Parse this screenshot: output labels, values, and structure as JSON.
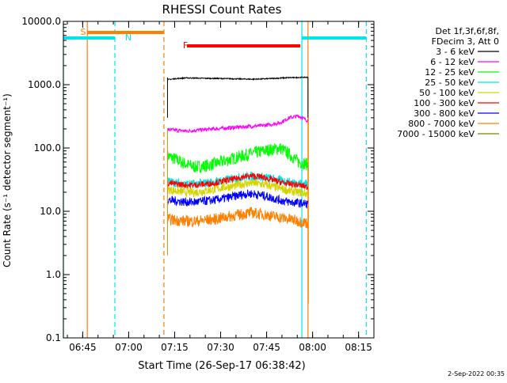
{
  "chart_data": {
    "type": "line",
    "title": "RHESSI Count Rates",
    "xlabel": "Start Time (26-Sep-17 06:38:42)",
    "ylabel": "Count Rate (s⁻¹ detector segment⁻¹)",
    "y_scale": "log",
    "ylim": [
      0.1,
      10000
    ],
    "xlim": [
      "06:38:42",
      "08:20:00"
    ],
    "x_ticks": [
      "06:45",
      "07:00",
      "07:15",
      "07:30",
      "07:45",
      "08:00",
      "08:15"
    ],
    "y_ticks": [
      {
        "value": 0.1,
        "label": "0.1"
      },
      {
        "value": 1,
        "label": "1.0"
      },
      {
        "value": 10,
        "label": "10.0"
      },
      {
        "value": 100,
        "label": "100.0"
      },
      {
        "value": 1000,
        "label": "1000.0"
      },
      {
        "value": 10000,
        "label": "10000.0"
      }
    ],
    "legend_header": [
      "Det 1f,3f,6f,8f,",
      "FDecim 3, Att 0"
    ],
    "legend_position": "right",
    "footer_stamp": "2-Sep-2022 00:35",
    "series": [
      {
        "name": "3 - 6 keV",
        "color": "#000000",
        "start": "07:12:40",
        "end": "07:58:30",
        "values": [
          1200,
          1250,
          1280,
          1270,
          1260,
          1255,
          1250,
          1240,
          1230,
          1220,
          1230,
          1250,
          1270,
          1290,
          1300,
          1310
        ]
      },
      {
        "name": "6 - 12 keV",
        "color": "#ff00ff",
        "start": "07:12:40",
        "end": "07:58:30",
        "values": [
          195,
          190,
          185,
          190,
          195,
          200,
          205,
          210,
          215,
          220,
          225,
          235,
          250,
          300,
          320,
          270
        ]
      },
      {
        "name": "12 - 25 keV",
        "color": "#00ff00",
        "start": "07:12:40",
        "end": "07:58:30",
        "values": [
          75,
          65,
          55,
          50,
          52,
          56,
          62,
          68,
          75,
          82,
          88,
          94,
          100,
          80,
          60,
          55
        ]
      },
      {
        "name": "25 - 50 keV",
        "color": "#00e5e5",
        "start": "07:12:40",
        "end": "07:58:30",
        "values": [
          30,
          28,
          27,
          27,
          28,
          29,
          31,
          33,
          35,
          36,
          35,
          33,
          31,
          29,
          28,
          27
        ]
      },
      {
        "name": "50 - 100 keV",
        "color": "#d4d400",
        "start": "07:12:40",
        "end": "07:58:30",
        "values": [
          22,
          21,
          20,
          20,
          21,
          22,
          24,
          25,
          27,
          28,
          27,
          25,
          23,
          21,
          20,
          19
        ]
      },
      {
        "name": "100 - 300 keV",
        "color": "#ff0000",
        "start": "07:12:40",
        "end": "07:58:30",
        "values": [
          28,
          27,
          26,
          26,
          27,
          28,
          30,
          32,
          35,
          36,
          35,
          32,
          29,
          27,
          26,
          24
        ]
      },
      {
        "name": "300 - 800 keV",
        "color": "#0000ff",
        "start": "07:12:40",
        "end": "07:58:30",
        "values": [
          15,
          14.5,
          14,
          14,
          14.5,
          15,
          16,
          17,
          18.5,
          19,
          18,
          16.5,
          15,
          14,
          13.5,
          13
        ]
      },
      {
        "name": "800 - 7000 keV",
        "color": "#ff8000",
        "start": "07:12:40",
        "end": "07:58:30",
        "values": [
          7.5,
          7.2,
          7,
          7,
          7.2,
          7.5,
          8,
          8.5,
          9,
          9.5,
          9,
          8.5,
          8,
          7.5,
          7,
          6.5
        ]
      },
      {
        "name": "7000 - 15000 keV",
        "color": "#808000",
        "start": "07:12:40",
        "end": "07:58:30",
        "values": []
      }
    ],
    "flags": [
      {
        "name": "S",
        "color": "#ff8000",
        "start": "06:46:30",
        "end": "07:11:30"
      },
      {
        "name": "N",
        "color": "#00e5e5",
        "start": "06:38:42",
        "end": "06:55:30"
      },
      {
        "name": "N",
        "color": "#00e5e5",
        "start": "07:56:30",
        "end": "08:17:30"
      },
      {
        "name": "F",
        "color": "#ff0000",
        "start": "07:19:00",
        "end": "07:56:00"
      }
    ],
    "flag_labels": [
      "S",
      "N",
      "F"
    ],
    "verticals": [
      {
        "time": "06:38:42",
        "color": "#00e5e5",
        "dash": false
      },
      {
        "time": "06:46:30",
        "color": "#ff8000",
        "dash": false
      },
      {
        "time": "06:55:30",
        "color": "#00e5e5",
        "dash": true
      },
      {
        "time": "07:11:30",
        "color": "#ff8000",
        "dash": true
      },
      {
        "time": "07:56:30",
        "color": "#00e5e5",
        "dash": false
      },
      {
        "time": "07:58:30",
        "color": "#ff8000",
        "dash": false
      },
      {
        "time": "08:17:30",
        "color": "#00e5e5",
        "dash": true
      }
    ]
  }
}
